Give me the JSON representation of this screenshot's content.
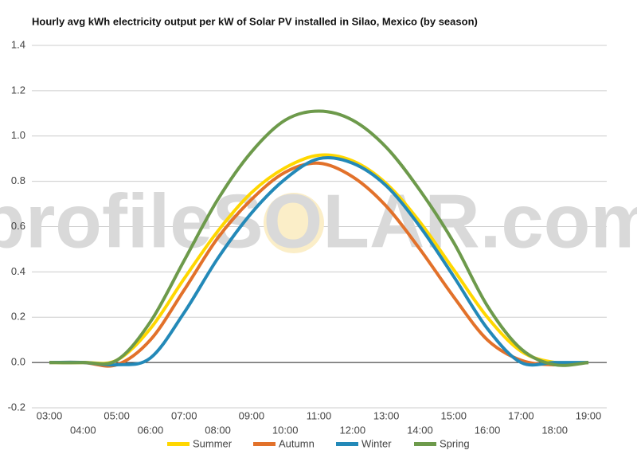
{
  "chart_data": {
    "type": "line",
    "title": "Hourly avg kWh electricity output per kW of Solar PV installed in Silao, Mexico (by season)",
    "watermark": "profileSOLAR.com",
    "categories": [
      "03:00",
      "04:00",
      "05:00",
      "06:00",
      "07:00",
      "08:00",
      "09:00",
      "10:00",
      "11:00",
      "12:00",
      "13:00",
      "14:00",
      "15:00",
      "16:00",
      "17:00",
      "18:00",
      "19:00"
    ],
    "series": [
      {
        "name": "Summer",
        "color": "#ffd700",
        "values": [
          0,
          0,
          0.01,
          0.15,
          0.37,
          0.58,
          0.75,
          0.86,
          0.915,
          0.89,
          0.79,
          0.62,
          0.41,
          0.2,
          0.05,
          0,
          0
        ]
      },
      {
        "name": "Autumn",
        "color": "#e2712a",
        "values": [
          0,
          0,
          -0.01,
          0.1,
          0.32,
          0.55,
          0.72,
          0.84,
          0.88,
          0.82,
          0.69,
          0.5,
          0.29,
          0.1,
          0.01,
          -0.01,
          0
        ]
      },
      {
        "name": "Winter",
        "color": "#2389b8",
        "values": [
          0,
          0,
          -0.01,
          0.02,
          0.22,
          0.46,
          0.66,
          0.81,
          0.9,
          0.88,
          0.78,
          0.6,
          0.38,
          0.15,
          0,
          0,
          0
        ]
      },
      {
        "name": "Spring",
        "color": "#6d9a4b",
        "values": [
          0,
          0,
          0.01,
          0.18,
          0.45,
          0.72,
          0.93,
          1.07,
          1.11,
          1.07,
          0.95,
          0.76,
          0.53,
          0.25,
          0.06,
          -0.01,
          0
        ]
      }
    ],
    "ylim": [
      -0.2,
      1.4
    ],
    "yticks": [
      -0.2,
      {
        "value": 0,
        "label": "0.0"
      },
      0.2,
      0.4,
      0.6,
      0.8,
      {
        "value": 1,
        "label": "1.0"
      },
      1.2,
      1.4
    ],
    "grid": true,
    "legend": "bottom"
  }
}
